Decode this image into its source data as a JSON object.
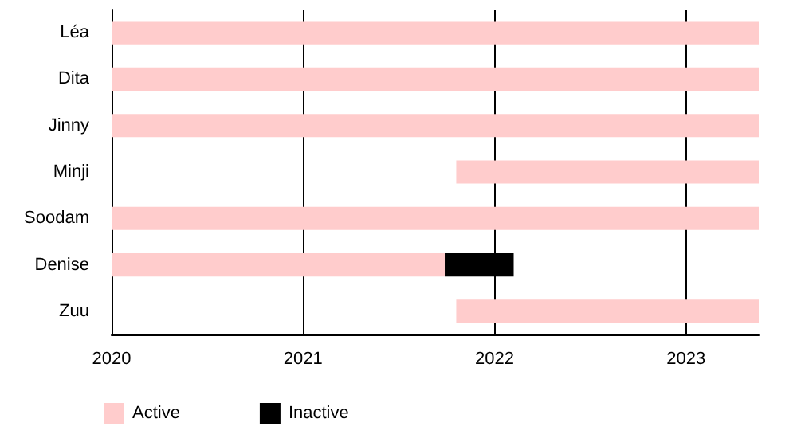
{
  "chart_data": {
    "type": "bar",
    "orientation": "horizontal",
    "categories": [
      "Léa",
      "Dita",
      "Jinny",
      "Minji",
      "Soodam",
      "Denise",
      "Zuu"
    ],
    "series": [
      {
        "name": "Active",
        "color": "#ffcccc",
        "values": [
          3.38,
          3.38,
          3.38,
          1.58,
          3.38,
          1.74,
          1.58
        ],
        "base": [
          2020,
          2020,
          2020,
          2021.8,
          2020,
          2020,
          2021.8
        ]
      },
      {
        "name": "Inactive",
        "color": "#000000",
        "values": [
          null,
          null,
          null,
          null,
          null,
          0.36,
          null
        ],
        "base": [
          null,
          null,
          null,
          null,
          null,
          2021.74,
          null
        ]
      }
    ],
    "xlim": [
      2020,
      2023.38
    ],
    "xticks": [
      2020,
      2021,
      2022,
      2023
    ],
    "grid": "x",
    "legend": "bottom left"
  }
}
